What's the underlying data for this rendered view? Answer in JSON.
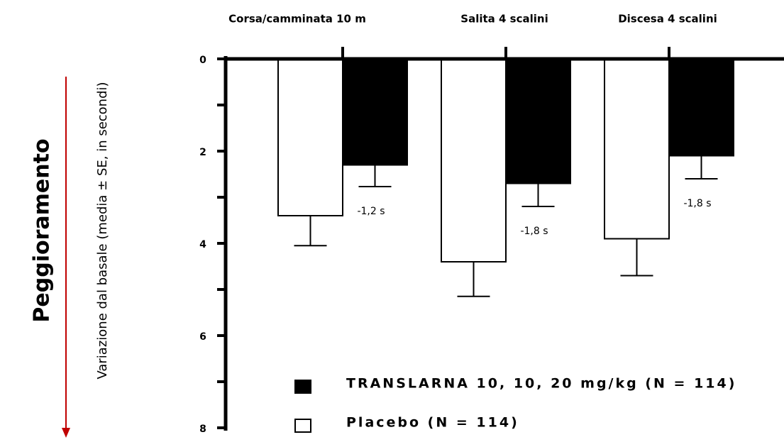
{
  "chart_data": {
    "type": "bar",
    "side_label": "Peggioramento",
    "y_label": "Variazione dal basale (media ± SE, in secondi)",
    "categories": [
      "Corsa/camminata 10 m",
      "Salita 4 scalini",
      "Discesa 4 scalini"
    ],
    "series": [
      {
        "name": "Placebo (N = 114)",
        "color": "#ffffff",
        "values": [
          3.4,
          4.4,
          3.9
        ],
        "errors": [
          0.65,
          0.75,
          0.8
        ]
      },
      {
        "name": "TRANSLARNA 10, 10, 20 mg/kg (N = 114)",
        "color": "#000000",
        "values": [
          2.3,
          2.7,
          2.1
        ],
        "errors": [
          0.47,
          0.5,
          0.5
        ]
      }
    ],
    "annotations": [
      "-1,2 s",
      "-1,8 s",
      "-1,8 s"
    ],
    "ylim": [
      0,
      8
    ],
    "y_inverted": true,
    "yticks": [
      0,
      2,
      4,
      6,
      8
    ],
    "minor_yticks": [
      1,
      3,
      5,
      7
    ]
  }
}
